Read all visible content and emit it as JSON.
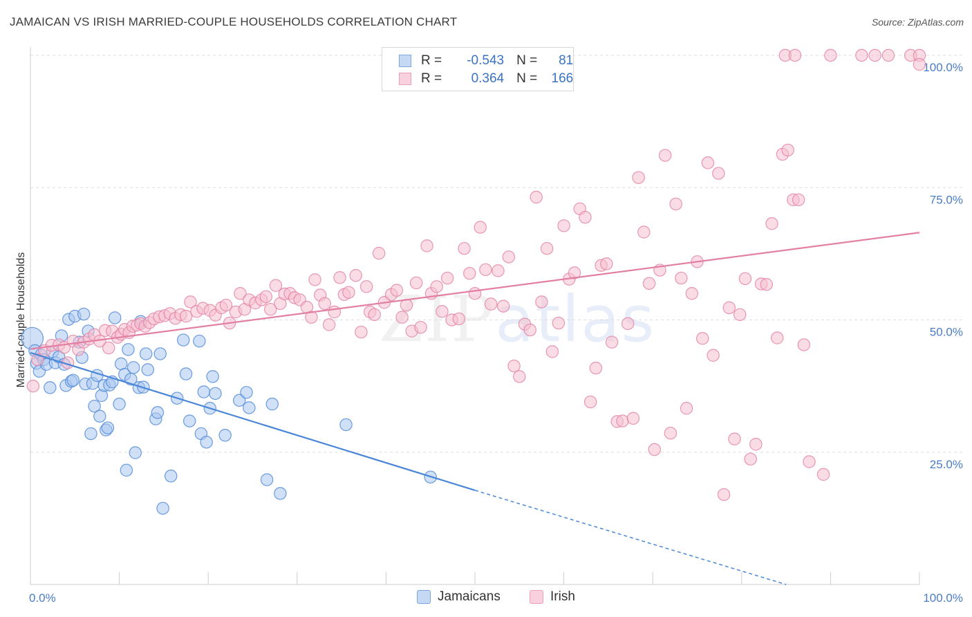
{
  "title": "JAMAICAN VS IRISH MARRIED-COUPLE HOUSEHOLDS CORRELATION CHART",
  "source": "Source: ZipAtlas.com",
  "watermark": {
    "zip": "ZIP",
    "atlas": "atlas"
  },
  "legend": {
    "rows": [
      {
        "r_label": "R =",
        "r_value": "-0.543",
        "n_label": "N =",
        "n_value": "81",
        "color": "#7aa7e0",
        "fill": "#c5d9f5"
      },
      {
        "r_label": "R =",
        "r_value": "0.364",
        "n_label": "N =",
        "n_value": "166",
        "color": "#eba0b8",
        "fill": "#f9d0dd"
      }
    ]
  },
  "chart_data": {
    "type": "scatter",
    "title": "JAMAICAN VS IRISH MARRIED-COUPLE HOUSEHOLDS CORRELATION CHART",
    "xlabel": "",
    "ylabel": "Married-couple Households",
    "xlim": [
      0,
      100
    ],
    "ylim": [
      0,
      100
    ],
    "x_tick_labels": [
      "0.0%",
      "100.0%"
    ],
    "y_ticks": [
      25,
      50,
      75,
      100
    ],
    "y_tick_labels": [
      "25.0%",
      "50.0%",
      "75.0%",
      "100.0%"
    ],
    "grid": "horizontal dashed",
    "legend_position": "bottom-center",
    "series": [
      {
        "name": "Jamaicans",
        "color": "#4a86d8",
        "fill": "#a9c7ef",
        "trend": {
          "x0": 0,
          "y0": 43.8,
          "x1": 50,
          "y1": 17.8,
          "dash_to_x": 85,
          "dash_to_y": 0
        },
        "points": [
          [
            0.2,
            46.5,
            22
          ],
          [
            0.5,
            44.2,
            12
          ],
          [
            0.7,
            41.8,
            12
          ],
          [
            1.0,
            40.3,
            12
          ],
          [
            1.2,
            43.4,
            12
          ],
          [
            1.5,
            42.5,
            12
          ],
          [
            1.8,
            41.6,
            12
          ],
          [
            2.2,
            37.2,
            12
          ],
          [
            2.5,
            44.0,
            12
          ],
          [
            2.8,
            41.9,
            12
          ],
          [
            3.2,
            43.0,
            12
          ],
          [
            3.5,
            47.0,
            12
          ],
          [
            3.8,
            41.6,
            12
          ],
          [
            4.0,
            37.6,
            12
          ],
          [
            4.3,
            50.1,
            12
          ],
          [
            4.6,
            38.4,
            12
          ],
          [
            4.8,
            38.6,
            12
          ],
          [
            5.0,
            50.7,
            12
          ],
          [
            5.5,
            45.8,
            12
          ],
          [
            5.8,
            42.9,
            12
          ],
          [
            6.0,
            51.1,
            12
          ],
          [
            6.2,
            37.9,
            12
          ],
          [
            6.5,
            47.9,
            12
          ],
          [
            6.8,
            28.5,
            12
          ],
          [
            7.0,
            38.0,
            12
          ],
          [
            7.2,
            33.7,
            12
          ],
          [
            7.5,
            39.5,
            12
          ],
          [
            7.8,
            31.8,
            12
          ],
          [
            8.0,
            35.7,
            12
          ],
          [
            8.3,
            37.6,
            12
          ],
          [
            8.5,
            29.2,
            12
          ],
          [
            8.7,
            29.6,
            12
          ],
          [
            8.9,
            37.7,
            12
          ],
          [
            9.2,
            38.3,
            12
          ],
          [
            9.5,
            50.4,
            12
          ],
          [
            10.0,
            34.1,
            12
          ],
          [
            10.2,
            41.7,
            12
          ],
          [
            10.6,
            39.7,
            12
          ],
          [
            10.8,
            21.6,
            12
          ],
          [
            11.0,
            44.4,
            12
          ],
          [
            11.3,
            38.8,
            12
          ],
          [
            11.6,
            41.0,
            12
          ],
          [
            11.8,
            24.9,
            12
          ],
          [
            12.2,
            37.2,
            12
          ],
          [
            12.4,
            49.7,
            12
          ],
          [
            12.7,
            37.3,
            12
          ],
          [
            13.0,
            43.6,
            12
          ],
          [
            13.2,
            40.6,
            12
          ],
          [
            14.1,
            31.3,
            12
          ],
          [
            14.3,
            32.5,
            12
          ],
          [
            14.6,
            43.6,
            12
          ],
          [
            14.9,
            14.4,
            12
          ],
          [
            15.8,
            20.5,
            12
          ],
          [
            16.5,
            35.2,
            12
          ],
          [
            17.2,
            46.2,
            12
          ],
          [
            17.5,
            39.8,
            12
          ],
          [
            17.9,
            30.9,
            12
          ],
          [
            19.0,
            46.0,
            12
          ],
          [
            19.2,
            28.5,
            12
          ],
          [
            19.5,
            36.4,
            12
          ],
          [
            19.8,
            26.9,
            12
          ],
          [
            20.2,
            33.3,
            12
          ],
          [
            20.5,
            39.3,
            12
          ],
          [
            20.8,
            36.1,
            12
          ],
          [
            21.9,
            28.2,
            12
          ],
          [
            23.5,
            34.8,
            12
          ],
          [
            24.3,
            36.3,
            12
          ],
          [
            24.6,
            33.4,
            12
          ],
          [
            26.6,
            19.8,
            12
          ],
          [
            27.2,
            34.1,
            12
          ],
          [
            28.1,
            17.2,
            12
          ],
          [
            35.5,
            30.2,
            12
          ],
          [
            45.0,
            20.3,
            12
          ]
        ]
      },
      {
        "name": "Irish",
        "color": "#e27fa2",
        "fill": "#f6bfd0",
        "trend": {
          "x0": 0,
          "y0": 44.5,
          "x1": 100,
          "y1": 66.5
        },
        "points": [
          [
            0.3,
            37.5,
            12
          ],
          [
            0.8,
            42.5,
            12
          ],
          [
            1.6,
            44.2,
            12
          ],
          [
            2.4,
            45.2,
            12
          ],
          [
            3.2,
            45.3,
            12
          ],
          [
            3.8,
            44.8,
            12
          ],
          [
            4.2,
            41.9,
            12
          ],
          [
            4.8,
            46.0,
            12
          ],
          [
            5.4,
            44.4,
            12
          ],
          [
            6.0,
            45.8,
            12
          ],
          [
            6.6,
            46.4,
            12
          ],
          [
            7.2,
            47.2,
            12
          ],
          [
            7.8,
            46.0,
            12
          ],
          [
            8.4,
            48.0,
            12
          ],
          [
            8.8,
            44.7,
            12
          ],
          [
            9.2,
            47.9,
            12
          ],
          [
            9.8,
            46.7,
            12
          ],
          [
            10.2,
            47.3,
            12
          ],
          [
            10.6,
            48.2,
            12
          ],
          [
            11.1,
            47.6,
            12
          ],
          [
            11.5,
            48.8,
            12
          ],
          [
            12.0,
            49.0,
            12
          ],
          [
            12.4,
            49.3,
            12
          ],
          [
            12.9,
            48.8,
            12
          ],
          [
            13.4,
            49.5,
            12
          ],
          [
            13.9,
            50.2,
            12
          ],
          [
            14.5,
            50.6,
            12
          ],
          [
            15.1,
            50.8,
            12
          ],
          [
            15.7,
            51.2,
            12
          ],
          [
            16.3,
            50.3,
            12
          ],
          [
            16.9,
            51.0,
            12
          ],
          [
            17.5,
            50.7,
            12
          ],
          [
            18.0,
            53.4,
            12
          ],
          [
            18.7,
            51.6,
            12
          ],
          [
            19.4,
            52.2,
            12
          ],
          [
            20.2,
            51.8,
            12
          ],
          [
            20.8,
            50.9,
            12
          ],
          [
            21.5,
            52.3,
            12
          ],
          [
            22.0,
            52.8,
            12
          ],
          [
            22.4,
            49.4,
            12
          ],
          [
            23.1,
            51.5,
            12
          ],
          [
            23.6,
            55.0,
            12
          ],
          [
            24.1,
            52.0,
            12
          ],
          [
            24.6,
            53.8,
            12
          ],
          [
            25.3,
            53.2,
            12
          ],
          [
            26.0,
            53.8,
            12
          ],
          [
            26.5,
            54.4,
            12
          ],
          [
            27.0,
            52.0,
            12
          ],
          [
            27.6,
            56.5,
            12
          ],
          [
            28.1,
            53.1,
            12
          ],
          [
            28.6,
            54.9,
            12
          ],
          [
            29.2,
            55.0,
            12
          ],
          [
            29.7,
            54.2,
            12
          ],
          [
            30.3,
            53.8,
            12
          ],
          [
            31.1,
            52.4,
            12
          ],
          [
            31.6,
            50.5,
            12
          ],
          [
            32.0,
            57.6,
            12
          ],
          [
            32.6,
            54.7,
            12
          ],
          [
            33.1,
            53.1,
            12
          ],
          [
            33.6,
            49.1,
            12
          ],
          [
            34.2,
            51.5,
            12
          ],
          [
            34.8,
            58.0,
            12
          ],
          [
            35.3,
            54.8,
            12
          ],
          [
            35.8,
            55.2,
            12
          ],
          [
            36.6,
            58.4,
            12
          ],
          [
            37.2,
            47.7,
            12
          ],
          [
            37.8,
            56.3,
            12
          ],
          [
            38.2,
            51.5,
            12
          ],
          [
            38.7,
            51.0,
            12
          ],
          [
            39.2,
            62.6,
            12
          ],
          [
            39.8,
            53.3,
            12
          ],
          [
            40.6,
            54.8,
            12
          ],
          [
            41.2,
            55.6,
            12
          ],
          [
            41.8,
            50.5,
            12
          ],
          [
            42.3,
            52.8,
            12
          ],
          [
            42.9,
            47.9,
            12
          ],
          [
            43.4,
            57.0,
            12
          ],
          [
            43.9,
            48.6,
            12
          ],
          [
            44.6,
            64.0,
            12
          ],
          [
            45.1,
            55.0,
            12
          ],
          [
            45.7,
            56.3,
            12
          ],
          [
            46.3,
            51.6,
            12
          ],
          [
            46.9,
            57.9,
            12
          ],
          [
            47.4,
            50.0,
            12
          ],
          [
            48.2,
            50.2,
            12
          ],
          [
            48.8,
            63.5,
            12
          ],
          [
            49.4,
            58.8,
            12
          ],
          [
            50.0,
            55.0,
            12
          ],
          [
            50.6,
            67.5,
            12
          ],
          [
            51.2,
            59.5,
            12
          ],
          [
            51.8,
            53.0,
            12
          ],
          [
            52.6,
            59.3,
            12
          ],
          [
            53.2,
            52.6,
            12
          ],
          [
            53.8,
            61.9,
            12
          ],
          [
            54.4,
            41.3,
            12
          ],
          [
            55.0,
            39.3,
            12
          ],
          [
            55.6,
            49.2,
            12
          ],
          [
            56.2,
            48.1,
            12
          ],
          [
            56.9,
            73.2,
            12
          ],
          [
            57.5,
            53.4,
            12
          ],
          [
            58.1,
            63.5,
            12
          ],
          [
            58.7,
            44.0,
            12
          ],
          [
            59.4,
            49.4,
            12
          ],
          [
            60.0,
            67.8,
            12
          ],
          [
            60.6,
            57.7,
            12
          ],
          [
            61.2,
            58.9,
            12
          ],
          [
            61.8,
            71.0,
            12
          ],
          [
            62.4,
            69.4,
            12
          ],
          [
            63.0,
            34.5,
            12
          ],
          [
            63.6,
            40.9,
            12
          ],
          [
            64.2,
            60.3,
            12
          ],
          [
            64.8,
            60.6,
            12
          ],
          [
            65.4,
            45.8,
            12
          ],
          [
            66.0,
            30.8,
            12
          ],
          [
            66.6,
            30.9,
            12
          ],
          [
            67.2,
            49.3,
            12
          ],
          [
            67.8,
            31.4,
            12
          ],
          [
            68.4,
            76.9,
            12
          ],
          [
            69.0,
            66.6,
            12
          ],
          [
            69.6,
            56.9,
            12
          ],
          [
            70.2,
            25.5,
            12
          ],
          [
            70.8,
            59.4,
            12
          ],
          [
            71.4,
            81.1,
            12
          ],
          [
            72.0,
            28.6,
            12
          ],
          [
            72.6,
            71.9,
            12
          ],
          [
            73.2,
            57.9,
            12
          ],
          [
            73.8,
            33.3,
            12
          ],
          [
            74.4,
            55.0,
            12
          ],
          [
            75.0,
            61.0,
            12
          ],
          [
            75.6,
            46.5,
            12
          ],
          [
            76.2,
            79.7,
            12
          ],
          [
            76.8,
            43.3,
            12
          ],
          [
            77.4,
            77.7,
            12
          ],
          [
            78.0,
            17.0,
            12
          ],
          [
            78.6,
            52.3,
            12
          ],
          [
            79.2,
            27.5,
            12
          ],
          [
            79.8,
            51.0,
            12
          ],
          [
            80.4,
            57.8,
            12
          ],
          [
            81.0,
            23.7,
            12
          ],
          [
            81.6,
            26.5,
            12
          ],
          [
            82.2,
            56.8,
            12
          ],
          [
            82.8,
            56.7,
            12
          ],
          [
            83.4,
            68.2,
            12
          ],
          [
            84.0,
            46.6,
            12
          ],
          [
            84.6,
            81.3,
            12
          ],
          [
            85.2,
            82.1,
            12
          ],
          [
            85.8,
            72.7,
            12
          ],
          [
            86.4,
            72.7,
            12
          ],
          [
            87.0,
            45.3,
            12
          ],
          [
            87.6,
            23.2,
            12
          ],
          [
            89.2,
            20.8,
            12
          ],
          [
            90.0,
            100,
            12
          ],
          [
            93.5,
            100,
            12
          ],
          [
            95.0,
            100,
            12
          ],
          [
            96.5,
            100,
            12
          ],
          [
            99.0,
            100,
            12
          ],
          [
            100.0,
            100,
            12
          ],
          [
            100.0,
            98.3,
            12
          ],
          [
            84.9,
            100,
            12
          ],
          [
            86.0,
            100,
            12
          ]
        ]
      }
    ]
  },
  "bottom_legend": {
    "items": [
      {
        "label": "Jamaicans",
        "color": "#7aa7e0",
        "fill": "#c5d9f5"
      },
      {
        "label": "Irish",
        "color": "#eba0b8",
        "fill": "#f9d0dd"
      }
    ]
  }
}
